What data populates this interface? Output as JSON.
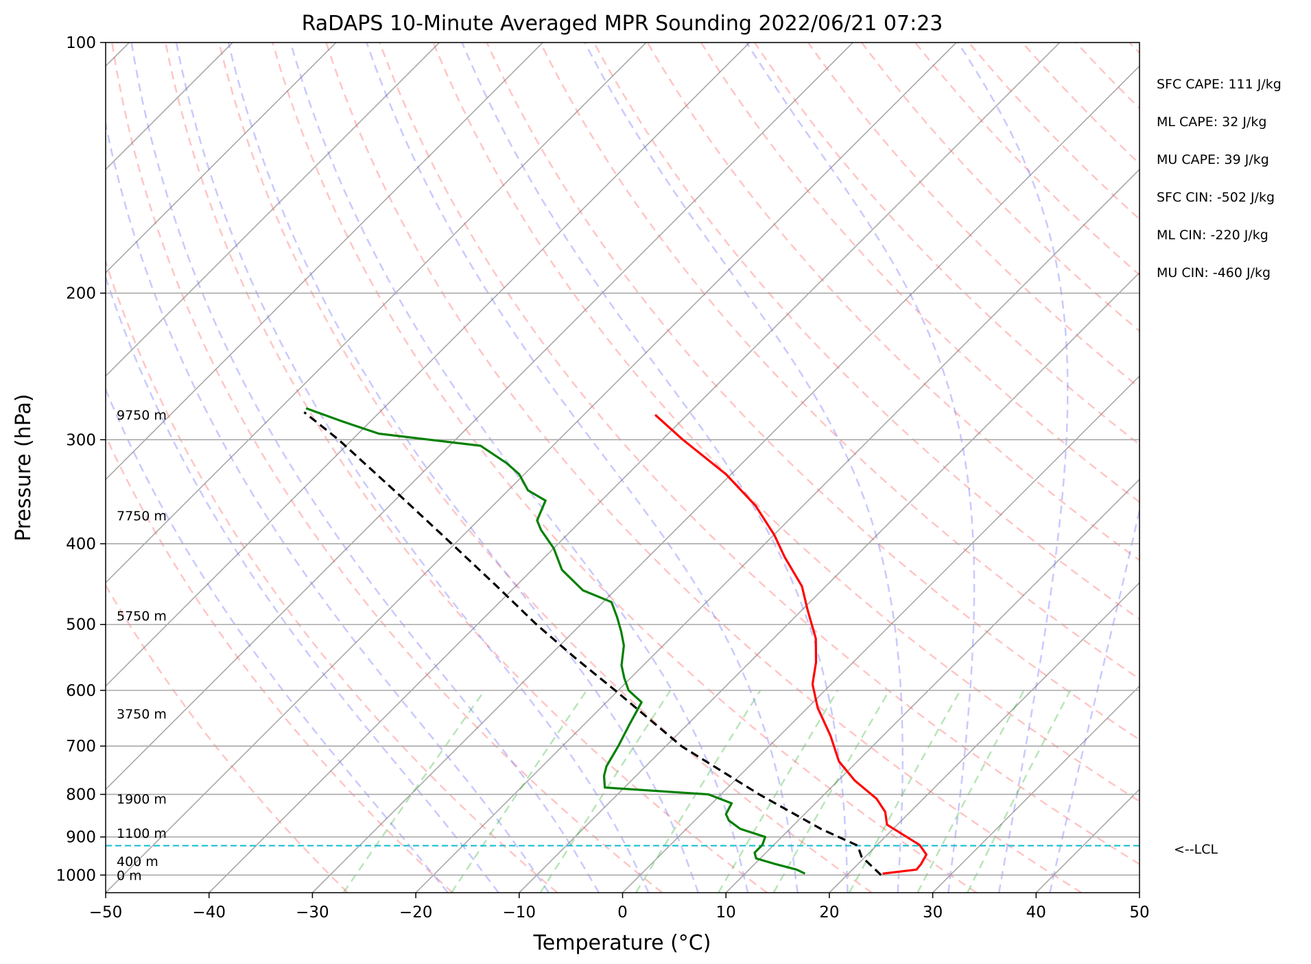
{
  "chart_data": {
    "type": "line",
    "title": "RaDAPS 10-Minute Averaged MPR Sounding 2022/06/21 07:23",
    "xlabel": "Temperature (°C)",
    "ylabel": "Pressure (hPa)",
    "xlim": [
      -50,
      50
    ],
    "ylim": [
      1050,
      100
    ],
    "y_scale": "log",
    "skew": "skew-T",
    "x_ticks": [
      "−50",
      "−40",
      "−30",
      "−20",
      "−10",
      "0",
      "10",
      "20",
      "30",
      "40",
      "50"
    ],
    "y_ticks": [
      "100",
      "200",
      "300",
      "400",
      "500",
      "600",
      "700",
      "800",
      "900",
      "1000"
    ],
    "x_tick_values": [
      -50,
      -40,
      -30,
      -20,
      -10,
      0,
      10,
      20,
      30,
      40,
      50
    ],
    "y_tick_values": [
      100,
      200,
      300,
      400,
      500,
      600,
      700,
      800,
      900,
      1000
    ],
    "height_labels": [
      {
        "label": "9750 m",
        "pressure": 280
      },
      {
        "label": "7750 m",
        "pressure": 370
      },
      {
        "label": "5750 m",
        "pressure": 488
      },
      {
        "label": "3750 m",
        "pressure": 640
      },
      {
        "label": "1900 m",
        "pressure": 810
      },
      {
        "label": "1100 m",
        "pressure": 890
      },
      {
        "label": "400 m",
        "pressure": 962
      },
      {
        "label": "0 m",
        "pressure": 1000
      }
    ],
    "lcl": {
      "pressure": 922,
      "label": "<--LCL",
      "color": "#17becf"
    },
    "stats": [
      "SFC CAPE: 111 J/kg",
      "ML CAPE: 32 J/kg",
      "MU CAPE: 39 J/kg",
      "SFC CIN: -502 J/kg",
      "ML CIN: -220 J/kg",
      "MU CIN: -460 J/kg"
    ],
    "series": [
      {
        "role": "temperature",
        "color": "#ff0000",
        "style": "solid",
        "pressure": [
          996,
          985,
          970,
          945,
          920,
          870,
          840,
          810,
          770,
          730,
          680,
          630,
          590,
          555,
          520,
          480,
          450,
          415,
          390,
          360,
          330,
          300,
          280
        ],
        "values": [
          23.3,
          26.2,
          26.1,
          25.7,
          24.1,
          19.0,
          17.6,
          15.5,
          11.6,
          8.2,
          4.9,
          1.0,
          -1.8,
          -3.6,
          -5.9,
          -9.5,
          -12.3,
          -16.8,
          -20.0,
          -24.6,
          -30.5,
          -38.0,
          -43.1
        ]
      },
      {
        "role": "dewpoint",
        "color": "#008000",
        "style": "solid",
        "pressure": [
          996,
          985,
          970,
          955,
          940,
          920,
          900,
          880,
          860,
          845,
          820,
          800,
          785,
          760,
          740,
          700,
          660,
          620,
          600,
          580,
          560,
          530,
          510,
          490,
          470,
          455,
          430,
          405,
          385,
          375,
          355,
          345,
          330,
          320,
          305,
          295,
          285,
          275
        ],
        "values": [
          15.8,
          14.6,
          12.0,
          9.6,
          8.9,
          8.9,
          8.4,
          5.2,
          3.3,
          2.4,
          1.9,
          -1.2,
          -11.9,
          -13.1,
          -13.8,
          -14.6,
          -15.6,
          -16.6,
          -19.0,
          -20.6,
          -22.1,
          -23.8,
          -25.4,
          -27.2,
          -29.2,
          -33.1,
          -37.1,
          -40.0,
          -43.0,
          -44.3,
          -45.4,
          -48.1,
          -50.5,
          -52.8,
          -57.0,
          -68.0,
          -72.8,
          -77.5
        ]
      },
      {
        "role": "parcel",
        "color": "#000000",
        "style": "dashed",
        "pressure": [
          1000,
          950,
          922,
          880,
          800,
          700,
          600,
          550,
          500,
          450,
          400,
          350,
          300,
          278
        ],
        "values": [
          23.3,
          19.6,
          18.2,
          13.0,
          3.7,
          -8.5,
          -20.3,
          -27.1,
          -34.3,
          -41.8,
          -50.3,
          -60.0,
          -71.3,
          -77.3
        ]
      }
    ]
  }
}
